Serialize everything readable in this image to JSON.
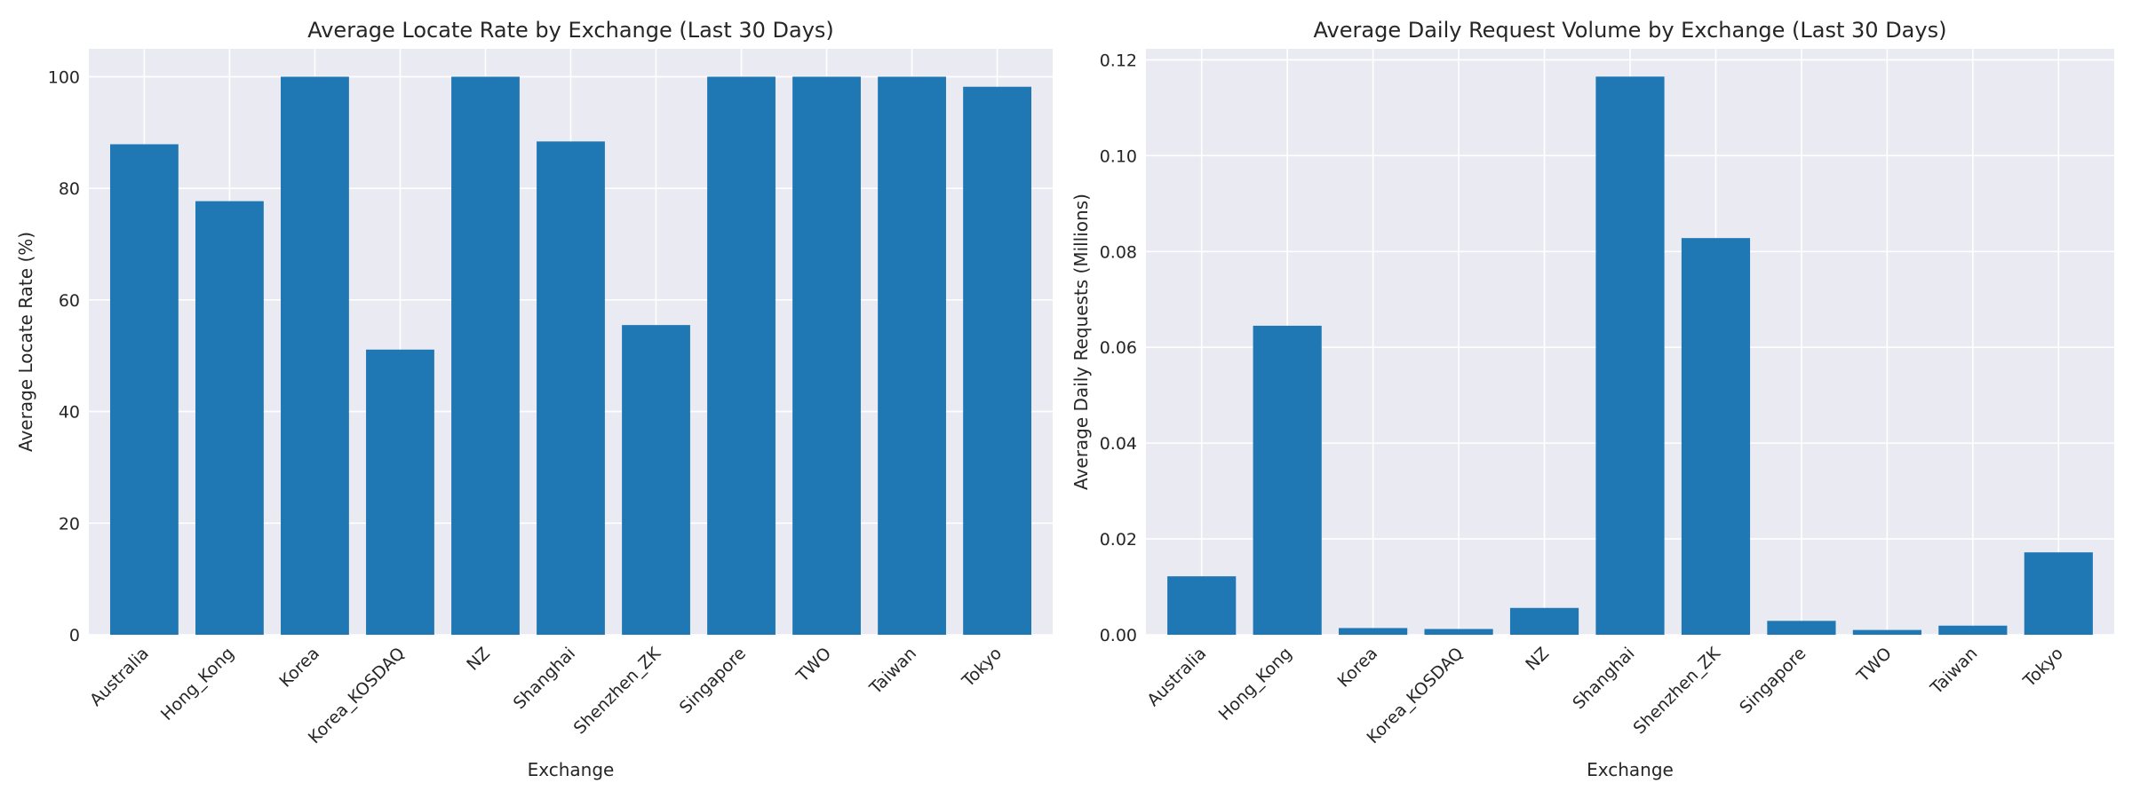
{
  "chart_data": [
    {
      "type": "bar",
      "title": "Average Locate Rate by Exchange (Last 30 Days)",
      "xlabel": "Exchange",
      "ylabel": "Average Locate Rate (%)",
      "categories": [
        "Australia",
        "Hong_Kong",
        "Korea",
        "Korea_KOSDAQ",
        "NZ",
        "Shanghai",
        "Shenzhen_ZK",
        "Singapore",
        "TWO",
        "Taiwan",
        "Tokyo"
      ],
      "values": [
        87.9,
        77.7,
        100.0,
        51.1,
        100.0,
        88.4,
        55.5,
        100.0,
        100.0,
        100.0,
        98.2
      ],
      "ylim": [
        0,
        105
      ],
      "yticks": [
        "0",
        "20",
        "40",
        "60",
        "80",
        "100"
      ],
      "grid": true,
      "bar_color": "#1f77b4"
    },
    {
      "type": "bar",
      "title": "Average Daily Request Volume by Exchange (Last 30 Days)",
      "xlabel": "Exchange",
      "ylabel": "Average Daily Requests (Millions)",
      "categories": [
        "Australia",
        "Hong_Kong",
        "Korea",
        "Korea_KOSDAQ",
        "NZ",
        "Shanghai",
        "Shenzhen_ZK",
        "Singapore",
        "TWO",
        "Taiwan",
        "Tokyo"
      ],
      "values": [
        0.0122,
        0.0645,
        0.0014,
        0.0012,
        0.0056,
        0.1165,
        0.0828,
        0.0029,
        0.001,
        0.0019,
        0.0172
      ],
      "ylim": [
        0,
        0.1223
      ],
      "yticks": [
        "0.00",
        "0.02",
        "0.04",
        "0.06",
        "0.08",
        "0.10",
        "0.12"
      ],
      "grid": true,
      "bar_color": "#1f77b4"
    }
  ]
}
